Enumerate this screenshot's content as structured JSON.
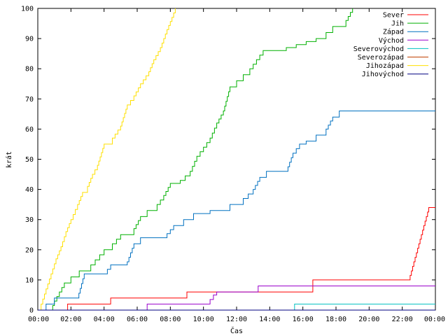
{
  "chart_data": {
    "type": "line",
    "title": "",
    "xlabel": "Čas",
    "ylabel": "krát",
    "xlim": [
      0,
      24
    ],
    "ylim": [
      0,
      100
    ],
    "grid": false,
    "legend_placement": "top-right",
    "x_ticks": [
      0,
      2,
      4,
      6,
      8,
      10,
      12,
      14,
      16,
      18,
      20,
      22,
      24
    ],
    "x_tick_labels": [
      "00:00",
      "02:00",
      "04:00",
      "06:00",
      "08:00",
      "10:00",
      "12:00",
      "14:00",
      "16:00",
      "18:00",
      "20:00",
      "22:00",
      "00:00"
    ],
    "y_ticks": [
      0,
      10,
      20,
      30,
      40,
      50,
      60,
      70,
      80,
      90,
      100
    ],
    "y_tick_labels": [
      "0",
      "10",
      "20",
      "30",
      "40",
      "50",
      "60",
      "70",
      "80",
      "90",
      "100"
    ],
    "series": [
      {
        "name": "Sever",
        "color": "#ff0000",
        "points": [
          [
            0,
            0
          ],
          [
            1.8,
            0
          ],
          [
            1.8,
            2
          ],
          [
            4.4,
            2
          ],
          [
            4.4,
            4
          ],
          [
            9.0,
            4
          ],
          [
            9.0,
            6
          ],
          [
            16.6,
            6
          ],
          [
            16.6,
            10
          ],
          [
            22.4,
            10
          ],
          [
            23.6,
            34
          ],
          [
            24,
            34
          ]
        ]
      },
      {
        "name": "Jih",
        "color": "#00b000",
        "points": [
          [
            0,
            0
          ],
          [
            0.8,
            0
          ],
          [
            1.0,
            3
          ],
          [
            1.3,
            6
          ],
          [
            1.6,
            9
          ],
          [
            2.0,
            11
          ],
          [
            2.5,
            13
          ],
          [
            3.2,
            15
          ],
          [
            4.0,
            20
          ],
          [
            4.5,
            22
          ],
          [
            5.0,
            25
          ],
          [
            5.8,
            27
          ],
          [
            6.2,
            31
          ],
          [
            6.6,
            33
          ],
          [
            7.2,
            35
          ],
          [
            7.6,
            38
          ],
          [
            8.0,
            42
          ],
          [
            8.6,
            43
          ],
          [
            9.2,
            46
          ],
          [
            9.6,
            51
          ],
          [
            10.0,
            54
          ],
          [
            10.4,
            57
          ],
          [
            10.8,
            62
          ],
          [
            11.2,
            66
          ],
          [
            11.6,
            74
          ],
          [
            12.0,
            76
          ],
          [
            12.4,
            78
          ],
          [
            12.8,
            80
          ],
          [
            13.2,
            83
          ],
          [
            13.6,
            86
          ],
          [
            14.4,
            86
          ],
          [
            15.0,
            87
          ],
          [
            15.6,
            88
          ],
          [
            16.2,
            89
          ],
          [
            16.8,
            90
          ],
          [
            17.4,
            92
          ],
          [
            17.8,
            94
          ],
          [
            18.6,
            96
          ],
          [
            19.0,
            100
          ]
        ]
      },
      {
        "name": "Západ",
        "color": "#0070c0",
        "points": [
          [
            0,
            0
          ],
          [
            0.3,
            0
          ],
          [
            0.5,
            2
          ],
          [
            1.0,
            4
          ],
          [
            2.4,
            4
          ],
          [
            2.8,
            12
          ],
          [
            4.0,
            12
          ],
          [
            4.4,
            15
          ],
          [
            5.4,
            16
          ],
          [
            5.8,
            22
          ],
          [
            6.2,
            24
          ],
          [
            7.6,
            24
          ],
          [
            8.2,
            28
          ],
          [
            8.8,
            30
          ],
          [
            9.4,
            32
          ],
          [
            10.4,
            33
          ],
          [
            11.6,
            35
          ],
          [
            12.4,
            37
          ],
          [
            13.0,
            40
          ],
          [
            13.4,
            44
          ],
          [
            13.8,
            46
          ],
          [
            15.0,
            46
          ],
          [
            15.4,
            52
          ],
          [
            15.8,
            55
          ],
          [
            16.2,
            56
          ],
          [
            16.8,
            58
          ],
          [
            17.4,
            60
          ],
          [
            17.8,
            64
          ],
          [
            18.2,
            66
          ],
          [
            24,
            66
          ]
        ]
      },
      {
        "name": "Východ",
        "color": "#9900cc",
        "points": [
          [
            0,
            0
          ],
          [
            6.5,
            0
          ],
          [
            6.6,
            2
          ],
          [
            10.2,
            2
          ],
          [
            10.6,
            5
          ],
          [
            10.8,
            6
          ],
          [
            13.2,
            6
          ],
          [
            13.3,
            8
          ],
          [
            24,
            8
          ]
        ]
      },
      {
        "name": "Severovýchod",
        "color": "#00c0c0",
        "points": [
          [
            0,
            0
          ],
          [
            15.4,
            0
          ],
          [
            15.5,
            2
          ],
          [
            24,
            2
          ]
        ]
      },
      {
        "name": "Severozápad",
        "color": "#c04000",
        "points": [
          [
            0,
            0
          ],
          [
            24,
            0
          ]
        ]
      },
      {
        "name": "Jihozápad",
        "color": "#ffe000",
        "points": [
          [
            0,
            0
          ],
          [
            0.2,
            2
          ],
          [
            0.5,
            7
          ],
          [
            0.8,
            12
          ],
          [
            1.1,
            17
          ],
          [
            1.4,
            21
          ],
          [
            1.7,
            26
          ],
          [
            2.0,
            30
          ],
          [
            2.4,
            35
          ],
          [
            2.7,
            39
          ],
          [
            3.0,
            41
          ],
          [
            3.3,
            45
          ],
          [
            3.6,
            48
          ],
          [
            4.0,
            55
          ],
          [
            4.5,
            57
          ],
          [
            5.0,
            61
          ],
          [
            5.4,
            68
          ],
          [
            5.8,
            71
          ],
          [
            6.2,
            75
          ],
          [
            6.7,
            79
          ],
          [
            7.0,
            83
          ],
          [
            7.4,
            87
          ],
          [
            7.8,
            93
          ],
          [
            8.1,
            97
          ],
          [
            8.3,
            100
          ]
        ]
      },
      {
        "name": "Jihovýchod",
        "color": "#000080",
        "points": [
          [
            0,
            0
          ],
          [
            24,
            0
          ]
        ]
      }
    ]
  }
}
